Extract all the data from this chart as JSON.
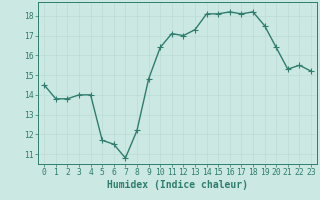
{
  "x": [
    0,
    1,
    2,
    3,
    4,
    5,
    6,
    7,
    8,
    9,
    10,
    11,
    12,
    13,
    14,
    15,
    16,
    17,
    18,
    19,
    20,
    21,
    22,
    23
  ],
  "y": [
    14.5,
    13.8,
    13.8,
    14.0,
    14.0,
    11.7,
    11.5,
    10.8,
    12.2,
    14.8,
    16.4,
    17.1,
    17.0,
    17.3,
    18.1,
    18.1,
    18.2,
    18.1,
    18.2,
    17.5,
    16.4,
    15.3,
    15.5,
    15.2
  ],
  "xlabel": "Humidex (Indice chaleur)",
  "ylim": [
    10.5,
    18.7
  ],
  "xlim": [
    -0.5,
    23.5
  ],
  "yticks": [
    11,
    12,
    13,
    14,
    15,
    16,
    17,
    18
  ],
  "xtick_labels": [
    "0",
    "1",
    "2",
    "3",
    "4",
    "5",
    "6",
    "7",
    "8",
    "9",
    "10",
    "11",
    "12",
    "13",
    "14",
    "15",
    "16",
    "17",
    "18",
    "19",
    "20",
    "21",
    "22",
    "23"
  ],
  "line_color": "#2e7d6e",
  "marker_color": "#2e7d6e",
  "bg_color": "#cce8e3",
  "grid_color": "#b8d8d2",
  "axis_color": "#2e7d6e",
  "tick_label_color": "#2e7d6e",
  "xlabel_color": "#2e7d6e",
  "xlabel_fontsize": 7,
  "tick_fontsize": 5.8,
  "ytick_fontsize": 5.8,
  "marker_size": 2.0,
  "line_width": 1.0
}
